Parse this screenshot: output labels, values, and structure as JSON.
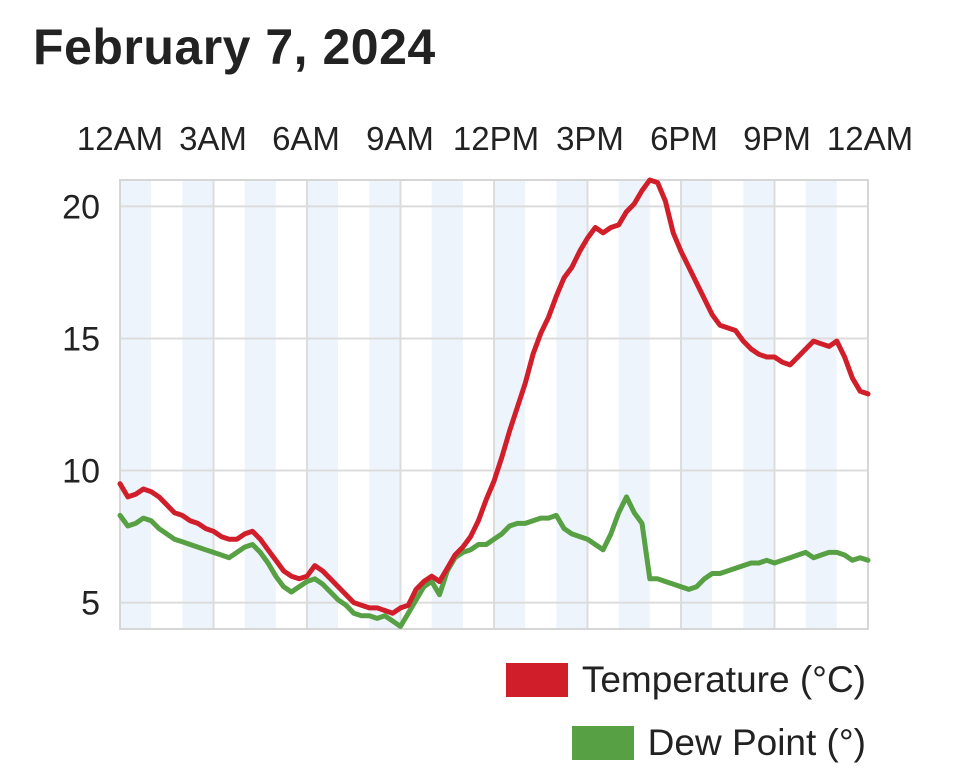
{
  "title": "February 7, 2024",
  "chart_data": {
    "type": "line",
    "x_tick_labels": [
      "12AM",
      "3AM",
      "6AM",
      "9AM",
      "12PM",
      "3PM",
      "6PM",
      "9PM",
      "12AM"
    ],
    "x_unit": "hours since midnight",
    "xlim": [
      0,
      24
    ],
    "ylim": [
      4,
      21
    ],
    "y_ticks": [
      5,
      10,
      15,
      20
    ],
    "grid": true,
    "legend_position": "bottom-right",
    "series": [
      {
        "name": "Temperature (°C)",
        "color": "#d01f2a",
        "points": [
          [
            0.0,
            9.5
          ],
          [
            0.25,
            9.0
          ],
          [
            0.5,
            9.1
          ],
          [
            0.75,
            9.3
          ],
          [
            1.0,
            9.2
          ],
          [
            1.25,
            9.0
          ],
          [
            1.5,
            8.7
          ],
          [
            1.75,
            8.4
          ],
          [
            2.0,
            8.3
          ],
          [
            2.25,
            8.1
          ],
          [
            2.5,
            8.0
          ],
          [
            2.75,
            7.8
          ],
          [
            3.0,
            7.7
          ],
          [
            3.25,
            7.5
          ],
          [
            3.5,
            7.4
          ],
          [
            3.75,
            7.4
          ],
          [
            4.0,
            7.6
          ],
          [
            4.25,
            7.7
          ],
          [
            4.5,
            7.4
          ],
          [
            4.75,
            7.0
          ],
          [
            5.0,
            6.6
          ],
          [
            5.25,
            6.2
          ],
          [
            5.5,
            6.0
          ],
          [
            5.75,
            5.9
          ],
          [
            6.0,
            6.0
          ],
          [
            6.25,
            6.4
          ],
          [
            6.5,
            6.2
          ],
          [
            6.75,
            5.9
          ],
          [
            7.0,
            5.6
          ],
          [
            7.25,
            5.3
          ],
          [
            7.5,
            5.0
          ],
          [
            7.75,
            4.9
          ],
          [
            8.0,
            4.8
          ],
          [
            8.25,
            4.8
          ],
          [
            8.5,
            4.7
          ],
          [
            8.75,
            4.6
          ],
          [
            9.0,
            4.8
          ],
          [
            9.25,
            4.9
          ],
          [
            9.5,
            5.5
          ],
          [
            9.75,
            5.8
          ],
          [
            10.0,
            6.0
          ],
          [
            10.25,
            5.8
          ],
          [
            10.5,
            6.3
          ],
          [
            10.75,
            6.8
          ],
          [
            11.0,
            7.1
          ],
          [
            11.25,
            7.5
          ],
          [
            11.5,
            8.1
          ],
          [
            11.75,
            8.9
          ],
          [
            12.0,
            9.6
          ],
          [
            12.25,
            10.5
          ],
          [
            12.5,
            11.5
          ],
          [
            12.75,
            12.4
          ],
          [
            13.0,
            13.3
          ],
          [
            13.25,
            14.4
          ],
          [
            13.5,
            15.2
          ],
          [
            13.75,
            15.8
          ],
          [
            14.0,
            16.6
          ],
          [
            14.25,
            17.3
          ],
          [
            14.5,
            17.7
          ],
          [
            14.75,
            18.3
          ],
          [
            15.0,
            18.8
          ],
          [
            15.25,
            19.2
          ],
          [
            15.5,
            19.0
          ],
          [
            15.75,
            19.2
          ],
          [
            16.0,
            19.3
          ],
          [
            16.25,
            19.8
          ],
          [
            16.5,
            20.1
          ],
          [
            16.75,
            20.6
          ],
          [
            17.0,
            21.0
          ],
          [
            17.25,
            20.9
          ],
          [
            17.5,
            20.2
          ],
          [
            17.75,
            19.0
          ],
          [
            18.0,
            18.3
          ],
          [
            18.25,
            17.7
          ],
          [
            18.5,
            17.1
          ],
          [
            18.75,
            16.5
          ],
          [
            19.0,
            15.9
          ],
          [
            19.25,
            15.5
          ],
          [
            19.5,
            15.4
          ],
          [
            19.75,
            15.3
          ],
          [
            20.0,
            14.9
          ],
          [
            20.25,
            14.6
          ],
          [
            20.5,
            14.4
          ],
          [
            20.75,
            14.3
          ],
          [
            21.0,
            14.3
          ],
          [
            21.25,
            14.1
          ],
          [
            21.5,
            14.0
          ],
          [
            21.75,
            14.3
          ],
          [
            22.0,
            14.6
          ],
          [
            22.25,
            14.9
          ],
          [
            22.5,
            14.8
          ],
          [
            22.75,
            14.7
          ],
          [
            23.0,
            14.9
          ],
          [
            23.25,
            14.3
          ],
          [
            23.5,
            13.5
          ],
          [
            23.75,
            13.0
          ],
          [
            24.0,
            12.9
          ]
        ]
      },
      {
        "name": "Dew Point (°)",
        "color": "#57a044",
        "points": [
          [
            0.0,
            8.3
          ],
          [
            0.25,
            7.9
          ],
          [
            0.5,
            8.0
          ],
          [
            0.75,
            8.2
          ],
          [
            1.0,
            8.1
          ],
          [
            1.25,
            7.8
          ],
          [
            1.5,
            7.6
          ],
          [
            1.75,
            7.4
          ],
          [
            2.0,
            7.3
          ],
          [
            2.25,
            7.2
          ],
          [
            2.5,
            7.1
          ],
          [
            2.75,
            7.0
          ],
          [
            3.0,
            6.9
          ],
          [
            3.25,
            6.8
          ],
          [
            3.5,
            6.7
          ],
          [
            3.75,
            6.9
          ],
          [
            4.0,
            7.1
          ],
          [
            4.25,
            7.2
          ],
          [
            4.5,
            6.9
          ],
          [
            4.75,
            6.5
          ],
          [
            5.0,
            6.0
          ],
          [
            5.25,
            5.6
          ],
          [
            5.5,
            5.4
          ],
          [
            5.75,
            5.6
          ],
          [
            6.0,
            5.8
          ],
          [
            6.25,
            5.9
          ],
          [
            6.5,
            5.7
          ],
          [
            6.75,
            5.4
          ],
          [
            7.0,
            5.1
          ],
          [
            7.25,
            4.9
          ],
          [
            7.5,
            4.6
          ],
          [
            7.75,
            4.5
          ],
          [
            8.0,
            4.5
          ],
          [
            8.25,
            4.4
          ],
          [
            8.5,
            4.5
          ],
          [
            8.75,
            4.3
          ],
          [
            9.0,
            4.1
          ],
          [
            9.25,
            4.6
          ],
          [
            9.5,
            5.1
          ],
          [
            9.75,
            5.6
          ],
          [
            10.0,
            5.8
          ],
          [
            10.25,
            5.3
          ],
          [
            10.5,
            6.2
          ],
          [
            10.75,
            6.7
          ],
          [
            11.0,
            6.9
          ],
          [
            11.25,
            7.0
          ],
          [
            11.5,
            7.2
          ],
          [
            11.75,
            7.2
          ],
          [
            12.0,
            7.4
          ],
          [
            12.25,
            7.6
          ],
          [
            12.5,
            7.9
          ],
          [
            12.75,
            8.0
          ],
          [
            13.0,
            8.0
          ],
          [
            13.25,
            8.1
          ],
          [
            13.5,
            8.2
          ],
          [
            13.75,
            8.2
          ],
          [
            14.0,
            8.3
          ],
          [
            14.25,
            7.8
          ],
          [
            14.5,
            7.6
          ],
          [
            14.75,
            7.5
          ],
          [
            15.0,
            7.4
          ],
          [
            15.25,
            7.2
          ],
          [
            15.5,
            7.0
          ],
          [
            15.75,
            7.6
          ],
          [
            16.0,
            8.4
          ],
          [
            16.25,
            9.0
          ],
          [
            16.5,
            8.4
          ],
          [
            16.75,
            8.0
          ],
          [
            17.0,
            5.9
          ],
          [
            17.25,
            5.9
          ],
          [
            17.5,
            5.8
          ],
          [
            17.75,
            5.7
          ],
          [
            18.0,
            5.6
          ],
          [
            18.25,
            5.5
          ],
          [
            18.5,
            5.6
          ],
          [
            18.75,
            5.9
          ],
          [
            19.0,
            6.1
          ],
          [
            19.25,
            6.1
          ],
          [
            19.5,
            6.2
          ],
          [
            19.75,
            6.3
          ],
          [
            20.0,
            6.4
          ],
          [
            20.25,
            6.5
          ],
          [
            20.5,
            6.5
          ],
          [
            20.75,
            6.6
          ],
          [
            21.0,
            6.5
          ],
          [
            21.25,
            6.6
          ],
          [
            21.5,
            6.7
          ],
          [
            21.75,
            6.8
          ],
          [
            22.0,
            6.9
          ],
          [
            22.25,
            6.7
          ],
          [
            22.5,
            6.8
          ],
          [
            22.75,
            6.9
          ],
          [
            23.0,
            6.9
          ],
          [
            23.25,
            6.8
          ],
          [
            23.5,
            6.6
          ],
          [
            23.75,
            6.7
          ],
          [
            24.0,
            6.6
          ]
        ]
      }
    ]
  }
}
